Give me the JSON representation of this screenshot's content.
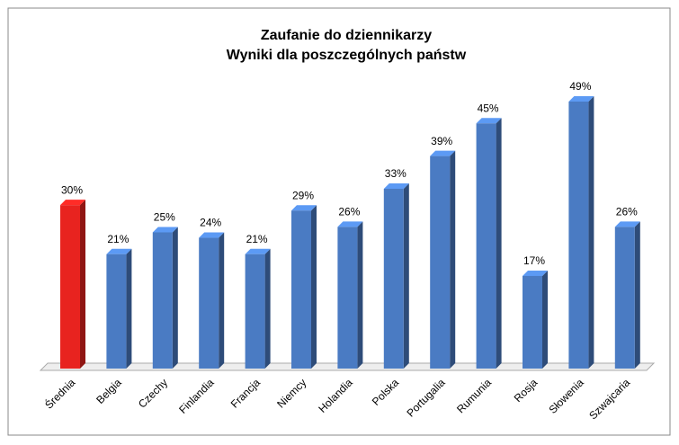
{
  "chart_data": {
    "type": "bar3d",
    "title": "Zaufanie do dziennikarzy",
    "subtitle": "Wyniki dla poszczególnych państw",
    "categories": [
      "Średnia",
      "Belgia",
      "Czechy",
      "Finlandia",
      "Francja",
      "Niemcy",
      "Holandia",
      "Polska",
      "Portugalia",
      "Rumunia",
      "Rosja",
      "Słowenia",
      "Szwajcaria"
    ],
    "values": [
      30,
      21,
      25,
      24,
      21,
      29,
      26,
      33,
      39,
      45,
      17,
      49,
      26
    ],
    "value_labels": [
      "30%",
      "21%",
      "25%",
      "24%",
      "21%",
      "29%",
      "26%",
      "33%",
      "39%",
      "45%",
      "17%",
      "49%",
      "26%"
    ],
    "colors": [
      "#e8231f",
      "#4a7bc3",
      "#4a7bc3",
      "#4a7bc3",
      "#4a7bc3",
      "#4a7bc3",
      "#4a7bc3",
      "#4a7bc3",
      "#4a7bc3",
      "#4a7bc3",
      "#4a7bc3",
      "#4a7bc3",
      "#4a7bc3"
    ]
  }
}
